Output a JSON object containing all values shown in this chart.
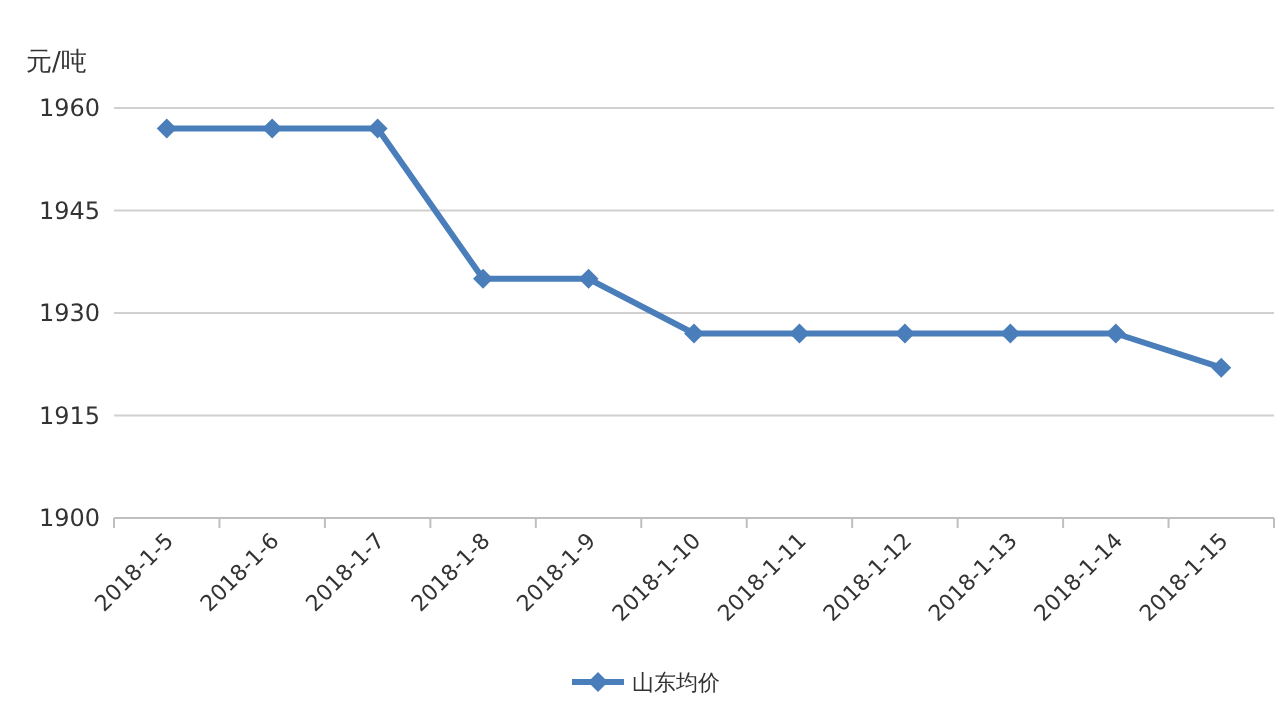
{
  "chart_data": {
    "type": "line",
    "ylabel": "元/吨",
    "categories": [
      "2018-1-5",
      "2018-1-6",
      "2018-1-7",
      "2018-1-8",
      "2018-1-9",
      "2018-1-10",
      "2018-1-11",
      "2018-1-12",
      "2018-1-13",
      "2018-1-14",
      "2018-1-15"
    ],
    "series": [
      {
        "name": "山东均价",
        "color": "#4a7ebb",
        "values": [
          1957,
          1957,
          1957,
          1935,
          1935,
          1927,
          1927,
          1927,
          1927,
          1927,
          1922
        ]
      }
    ],
    "ylim": [
      1900,
      1960
    ],
    "yticks": [
      1900,
      1915,
      1930,
      1945,
      1960
    ],
    "grid": "y",
    "legend": "bottom",
    "marker": "diamond",
    "line_style": "solid"
  }
}
